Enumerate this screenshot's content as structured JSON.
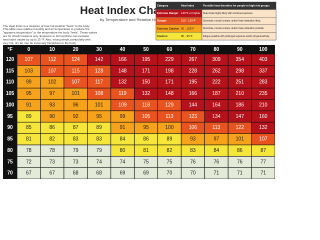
{
  "header": {
    "title": "Heat Index Chart",
    "subtitle": "by Temperature and Relative Humidity",
    "intro": [
      "The Heat Index is a measure of how hot weather \"feels\" to the body.",
      "This table uses relative humidity and air temperature to produce the",
      "\"apparent temperature\" or the temperature the body \"feels\". These values",
      "are for shady locations only. Exposure to full sunshine can increase",
      "heat index values by up to 15 °F. Also, strong winds, particularly with",
      "very hot, dry air, can be extremely hazardous to the body."
    ]
  },
  "legend": {
    "columns": [
      "Category",
      "Heat Index",
      "Possible heat disorders for people in high risk groups"
    ],
    "rows": [
      {
        "category": "Extreme Danger",
        "range": "130°F or higher",
        "min": 130,
        "color": "#b5121b",
        "text": "Heat stroke highly likely with continued exposure."
      },
      {
        "category": "Danger",
        "range": "105 - 129°F",
        "min": 105,
        "color": "#e8531f",
        "text": "Sunstroke, muscle cramps, and/or heat exhaustion likely."
      },
      {
        "category": "Extreme Caution",
        "range": "90 - 105°F",
        "min": 90,
        "color": "#f7a21b",
        "text": "Sunstroke, muscle cramps, and/or heat exhaustion possible."
      },
      {
        "category": "Caution",
        "range": "80 - 90°F",
        "min": 80,
        "color": "#f6e63a",
        "text": "Fatigue possible with prolonged exposure and/or physical activity."
      }
    ]
  },
  "table": {
    "corner": "°F",
    "caption": "Relative Humidity (%)",
    "columns": [
      "0",
      "10",
      "20",
      "30",
      "40",
      "50",
      "60",
      "70",
      "80",
      "90",
      "100"
    ],
    "rows": [
      {
        "temp": "120",
        "values": [
          "107",
          "112",
          "124",
          "142",
          "166",
          "195",
          "229",
          "267",
          "309",
          "354",
          "403"
        ]
      },
      {
        "temp": "115",
        "values": [
          "103",
          "107",
          "115",
          "128",
          "148",
          "171",
          "198",
          "228",
          "262",
          "298",
          "337"
        ]
      },
      {
        "temp": "110",
        "values": [
          "99",
          "102",
          "107",
          "117",
          "132",
          "150",
          "171",
          "195",
          "222",
          "251",
          "283"
        ]
      },
      {
        "temp": "105",
        "values": [
          "95",
          "97",
          "101",
          "108",
          "119",
          "132",
          "148",
          "166",
          "187",
          "210",
          "235"
        ]
      },
      {
        "temp": "100",
        "values": [
          "91",
          "93",
          "96",
          "101",
          "109",
          "118",
          "129",
          "144",
          "164",
          "186",
          "210"
        ]
      },
      {
        "temp": "95",
        "values": [
          "89",
          "90",
          "92",
          "95",
          "99",
          "105",
          "113",
          "123",
          "134",
          "147",
          "160"
        ]
      },
      {
        "temp": "90",
        "values": [
          "85",
          "86",
          "87",
          "89",
          "91",
          "95",
          "100",
          "106",
          "113",
          "122",
          "132"
        ]
      },
      {
        "temp": "85",
        "values": [
          "81",
          "82",
          "83",
          "83",
          "84",
          "86",
          "89",
          "93",
          "97",
          "101",
          "107"
        ]
      },
      {
        "temp": "80",
        "values": [
          "78",
          "78",
          "79",
          "79",
          "80",
          "81",
          "82",
          "83",
          "84",
          "86",
          "87"
        ]
      },
      {
        "temp": "75",
        "values": [
          "72",
          "73",
          "73",
          "74",
          "74",
          "75",
          "75",
          "76",
          "76",
          "76",
          "77"
        ]
      },
      {
        "temp": "70",
        "values": [
          "67",
          "67",
          "68",
          "68",
          "69",
          "69",
          "70",
          "70",
          "71",
          "71",
          "71"
        ]
      }
    ]
  }
}
